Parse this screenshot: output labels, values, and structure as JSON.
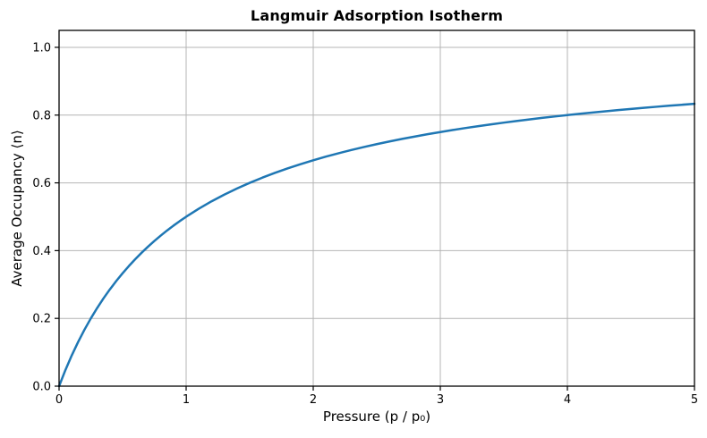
{
  "colors": {
    "background": "#ffffff",
    "grid": "#b4b4b4",
    "spine": "#000000",
    "text": "#000000",
    "line": "#1f77b4"
  },
  "chart_data": {
    "type": "line",
    "title": "Langmuir Adsorption Isotherm",
    "xlabel": "Pressure (p / p₀)",
    "ylabel": "Average Occupancy ⟨n⟩",
    "xlim": [
      0,
      5
    ],
    "ylim": [
      0,
      1.05
    ],
    "xticks": [
      0,
      1,
      2,
      3,
      4,
      5
    ],
    "xtick_labels": [
      "0",
      "1",
      "2",
      "3",
      "4",
      "5"
    ],
    "yticks": [
      0.0,
      0.2,
      0.4,
      0.6,
      0.8,
      1.0
    ],
    "ytick_labels": [
      "0.0",
      "0.2",
      "0.4",
      "0.6",
      "0.8",
      "1.0"
    ],
    "grid": true,
    "legend": "none",
    "series": [
      {
        "color": "#1f77b4",
        "line_width": 2.5,
        "x": [
          0.0,
          0.05,
          0.1,
          0.15,
          0.2,
          0.25,
          0.3,
          0.35,
          0.4,
          0.45,
          0.5,
          0.55,
          0.6,
          0.65,
          0.7,
          0.75,
          0.8,
          0.85,
          0.9,
          0.95,
          1.0,
          1.1,
          1.2,
          1.3,
          1.4,
          1.5,
          1.6,
          1.7,
          1.8,
          1.9,
          2.0,
          2.1,
          2.2,
          2.3,
          2.4,
          2.5,
          2.6,
          2.7,
          2.8,
          2.9,
          3.0,
          3.1,
          3.2,
          3.3,
          3.4,
          3.5,
          3.6,
          3.7,
          3.8,
          3.9,
          4.0,
          4.1,
          4.2,
          4.3,
          4.4,
          4.5,
          4.6,
          4.7,
          4.8,
          4.9,
          5.0
        ],
        "y": [
          0.0,
          0.0476,
          0.0909,
          0.1304,
          0.1667,
          0.2,
          0.2308,
          0.2593,
          0.2857,
          0.3103,
          0.3333,
          0.3548,
          0.375,
          0.3939,
          0.4118,
          0.4286,
          0.4444,
          0.4595,
          0.4737,
          0.4872,
          0.5,
          0.5238,
          0.5455,
          0.5652,
          0.5833,
          0.6,
          0.6154,
          0.6296,
          0.6429,
          0.6552,
          0.6667,
          0.6774,
          0.6875,
          0.697,
          0.7059,
          0.7143,
          0.7222,
          0.7297,
          0.7368,
          0.7436,
          0.75,
          0.7561,
          0.7619,
          0.7674,
          0.7727,
          0.7778,
          0.7826,
          0.7872,
          0.7917,
          0.7959,
          0.8,
          0.8039,
          0.8077,
          0.8113,
          0.8148,
          0.8182,
          0.8214,
          0.8246,
          0.8276,
          0.8305,
          0.8333
        ]
      }
    ]
  }
}
